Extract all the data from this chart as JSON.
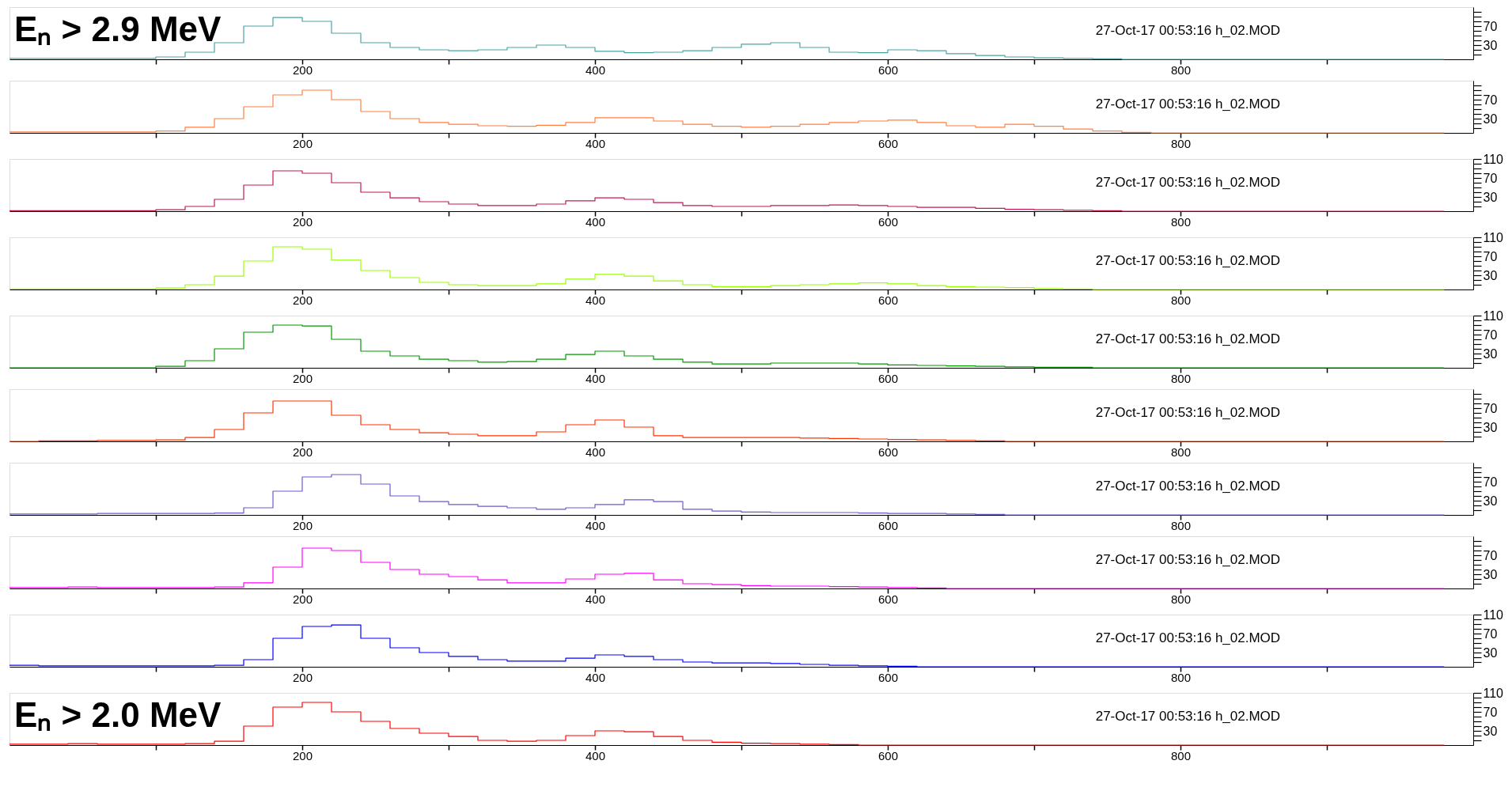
{
  "chart_data": [
    {
      "type": "step",
      "title": "Eₙ > 2.9 MeV",
      "annotations": [
        "27-Oct-17 00:53:16  h_02.MOD"
      ],
      "color": "#4aa3a3",
      "xlim": [
        0,
        1000
      ],
      "ylim": [
        0,
        110
      ],
      "xticks": [
        {
          "value": 100,
          "label": null
        },
        200,
        {
          "value": 300,
          "label": null
        },
        400,
        {
          "value": 500,
          "label": null
        },
        600,
        {
          "value": 700,
          "label": null
        },
        800,
        {
          "value": 900,
          "label": null
        }
      ],
      "yticks": [
        {
          "value": 10,
          "label": null
        },
        {
          "value": 20,
          "label": null
        },
        30,
        {
          "value": 40,
          "label": null
        },
        {
          "value": 50,
          "label": null
        },
        {
          "value": 60,
          "label": null
        },
        70,
        {
          "value": 80,
          "label": null
        },
        {
          "value": 90,
          "label": null
        },
        {
          "value": 100,
          "label": null
        }
      ],
      "x": [
        0,
        20,
        40,
        60,
        80,
        100,
        120,
        140,
        160,
        180,
        200,
        220,
        240,
        260,
        280,
        300,
        320,
        340,
        360,
        380,
        400,
        420,
        440,
        460,
        480,
        500,
        520,
        540,
        560,
        580,
        600,
        620,
        640,
        660,
        680,
        700,
        720,
        740,
        760,
        780,
        800,
        820,
        840,
        860,
        880,
        900,
        920,
        940,
        960,
        980
      ],
      "values": [
        2,
        2,
        2,
        2,
        2,
        5,
        15,
        35,
        70,
        88,
        80,
        55,
        35,
        25,
        20,
        18,
        20,
        25,
        30,
        25,
        17,
        14,
        15,
        18,
        25,
        32,
        35,
        25,
        15,
        14,
        20,
        18,
        12,
        8,
        5,
        3,
        2,
        1,
        0,
        0,
        0,
        0,
        0,
        0,
        0,
        0,
        0,
        0,
        0,
        0
      ]
    },
    {
      "type": "step",
      "annotations": [
        "27-Oct-17 00:53:16  h_02.MOD"
      ],
      "color": "#ff7f3f",
      "xlim": [
        0,
        1000
      ],
      "ylim": [
        0,
        110
      ],
      "xticks": [
        {
          "value": 100,
          "label": null
        },
        200,
        {
          "value": 300,
          "label": null
        },
        400,
        {
          "value": 500,
          "label": null
        },
        600,
        {
          "value": 700,
          "label": null
        },
        800,
        {
          "value": 900,
          "label": null
        }
      ],
      "yticks": [
        {
          "value": 10,
          "label": null
        },
        {
          "value": 20,
          "label": null
        },
        30,
        {
          "value": 40,
          "label": null
        },
        {
          "value": 50,
          "label": null
        },
        {
          "value": 60,
          "label": null
        },
        70,
        {
          "value": 80,
          "label": null
        },
        {
          "value": 90,
          "label": null
        },
        {
          "value": 100,
          "label": null
        }
      ],
      "x": [
        0,
        20,
        40,
        60,
        80,
        100,
        120,
        140,
        160,
        180,
        200,
        220,
        240,
        260,
        280,
        300,
        320,
        340,
        360,
        380,
        400,
        420,
        440,
        460,
        480,
        500,
        520,
        540,
        560,
        580,
        600,
        620,
        640,
        660,
        680,
        700,
        720,
        740,
        760,
        780,
        800,
        820,
        840,
        860,
        880,
        900,
        920,
        940,
        960,
        980
      ],
      "values": [
        2,
        2,
        2,
        2,
        2,
        4,
        12,
        30,
        55,
        80,
        90,
        70,
        45,
        30,
        22,
        18,
        15,
        14,
        16,
        22,
        32,
        32,
        25,
        18,
        14,
        12,
        14,
        18,
        22,
        25,
        27,
        22,
        15,
        12,
        18,
        14,
        8,
        4,
        1,
        0,
        0,
        0,
        0,
        0,
        0,
        0,
        0,
        0,
        0,
        0
      ]
    },
    {
      "type": "step",
      "annotations": [
        "27-Oct-17 00:53:16  h_02.MOD"
      ],
      "color": "#c0185a",
      "xlim": [
        0,
        1000
      ],
      "ylim": [
        0,
        110
      ],
      "xticks": [
        {
          "value": 100,
          "label": null
        },
        200,
        {
          "value": 300,
          "label": null
        },
        400,
        {
          "value": 500,
          "label": null
        },
        600,
        {
          "value": 700,
          "label": null
        },
        800,
        {
          "value": 900,
          "label": null
        }
      ],
      "yticks": [
        {
          "value": 10,
          "label": null
        },
        {
          "value": 20,
          "label": null
        },
        30,
        {
          "value": 40,
          "label": null
        },
        {
          "value": 50,
          "label": null
        },
        {
          "value": 60,
          "label": null
        },
        70,
        {
          "value": 80,
          "label": null
        },
        {
          "value": 90,
          "label": null
        },
        {
          "value": 100,
          "label": null
        },
        110
      ],
      "x": [
        0,
        20,
        40,
        60,
        80,
        100,
        120,
        140,
        160,
        180,
        200,
        220,
        240,
        260,
        280,
        300,
        320,
        340,
        360,
        380,
        400,
        420,
        440,
        460,
        480,
        500,
        520,
        540,
        560,
        580,
        600,
        620,
        640,
        660,
        680,
        700,
        720,
        740,
        760,
        780,
        800,
        820,
        840,
        860,
        880,
        900,
        920,
        940,
        960,
        980
      ],
      "values": [
        1,
        1,
        1,
        1,
        1,
        3,
        10,
        25,
        55,
        85,
        80,
        60,
        40,
        28,
        20,
        15,
        12,
        12,
        15,
        22,
        28,
        25,
        18,
        12,
        10,
        10,
        12,
        12,
        13,
        12,
        10,
        8,
        8,
        6,
        4,
        3,
        2,
        1,
        0,
        0,
        0,
        0,
        0,
        0,
        0,
        0,
        0,
        0,
        0,
        0
      ]
    },
    {
      "type": "step",
      "annotations": [
        "27-Oct-17 00:53:16  h_02.MOD"
      ],
      "color": "#99ff00",
      "xlim": [
        0,
        1000
      ],
      "ylim": [
        0,
        110
      ],
      "xticks": [
        {
          "value": 100,
          "label": null
        },
        200,
        {
          "value": 300,
          "label": null
        },
        400,
        {
          "value": 500,
          "label": null
        },
        600,
        {
          "value": 700,
          "label": null
        },
        800,
        {
          "value": 900,
          "label": null
        }
      ],
      "yticks": [
        {
          "value": 10,
          "label": null
        },
        {
          "value": 20,
          "label": null
        },
        30,
        {
          "value": 40,
          "label": null
        },
        {
          "value": 50,
          "label": null
        },
        {
          "value": 60,
          "label": null
        },
        70,
        {
          "value": 80,
          "label": null
        },
        {
          "value": 90,
          "label": null
        },
        {
          "value": 100,
          "label": null
        },
        110
      ],
      "x": [
        0,
        20,
        40,
        60,
        80,
        100,
        120,
        140,
        160,
        180,
        200,
        220,
        240,
        260,
        280,
        300,
        320,
        340,
        360,
        380,
        400,
        420,
        440,
        460,
        480,
        500,
        520,
        540,
        560,
        580,
        600,
        620,
        640,
        660,
        680,
        700,
        720,
        740,
        760,
        780,
        800,
        820,
        840,
        860,
        880,
        900,
        920,
        940,
        960,
        980
      ],
      "values": [
        1,
        1,
        1,
        1,
        1,
        3,
        10,
        28,
        60,
        90,
        85,
        62,
        40,
        25,
        15,
        10,
        8,
        8,
        12,
        22,
        32,
        28,
        18,
        10,
        6,
        6,
        8,
        10,
        12,
        14,
        12,
        8,
        6,
        5,
        4,
        2,
        1,
        0,
        0,
        0,
        0,
        0,
        0,
        0,
        0,
        0,
        0,
        0,
        0,
        0
      ]
    },
    {
      "type": "step",
      "annotations": [
        "27-Oct-17 00:53:16  h_02.MOD"
      ],
      "color": "#009900",
      "xlim": [
        0,
        1000
      ],
      "ylim": [
        0,
        110
      ],
      "xticks": [
        {
          "value": 100,
          "label": null
        },
        200,
        {
          "value": 300,
          "label": null
        },
        400,
        {
          "value": 500,
          "label": null
        },
        600,
        {
          "value": 700,
          "label": null
        },
        800,
        {
          "value": 900,
          "label": null
        }
      ],
      "yticks": [
        {
          "value": 10,
          "label": null
        },
        {
          "value": 20,
          "label": null
        },
        30,
        {
          "value": 40,
          "label": null
        },
        {
          "value": 50,
          "label": null
        },
        {
          "value": 60,
          "label": null
        },
        70,
        {
          "value": 80,
          "label": null
        },
        {
          "value": 90,
          "label": null
        },
        {
          "value": 100,
          "label": null
        },
        110
      ],
      "x": [
        0,
        20,
        40,
        60,
        80,
        100,
        120,
        140,
        160,
        180,
        200,
        220,
        240,
        260,
        280,
        300,
        320,
        340,
        360,
        380,
        400,
        420,
        440,
        460,
        480,
        500,
        520,
        540,
        560,
        580,
        600,
        620,
        640,
        660,
        680,
        700,
        720,
        740,
        760,
        780,
        800,
        820,
        840,
        860,
        880,
        900,
        920,
        940,
        960,
        980
      ],
      "values": [
        0,
        0,
        0,
        0,
        0,
        3,
        15,
        40,
        75,
        90,
        88,
        60,
        35,
        25,
        18,
        15,
        12,
        13,
        18,
        28,
        35,
        25,
        18,
        12,
        8,
        8,
        10,
        10,
        10,
        8,
        6,
        5,
        4,
        3,
        2,
        1,
        1,
        0,
        0,
        0,
        0,
        0,
        0,
        0,
        0,
        0,
        0,
        0,
        0,
        0
      ]
    },
    {
      "type": "step",
      "annotations": [
        "27-Oct-17 00:53:16  h_02.MOD"
      ],
      "color": "#ff3300",
      "xlim": [
        0,
        1000
      ],
      "ylim": [
        0,
        110
      ],
      "xticks": [
        {
          "value": 100,
          "label": null
        },
        200,
        {
          "value": 300,
          "label": null
        },
        400,
        {
          "value": 500,
          "label": null
        },
        600,
        {
          "value": 700,
          "label": null
        },
        800,
        {
          "value": 900,
          "label": null
        }
      ],
      "yticks": [
        {
          "value": 10,
          "label": null
        },
        {
          "value": 20,
          "label": null
        },
        30,
        {
          "value": 40,
          "label": null
        },
        {
          "value": 50,
          "label": null
        },
        {
          "value": 60,
          "label": null
        },
        70,
        {
          "value": 80,
          "label": null
        },
        {
          "value": 90,
          "label": null
        },
        {
          "value": 100,
          "label": null
        }
      ],
      "x": [
        0,
        20,
        40,
        60,
        80,
        100,
        120,
        140,
        160,
        180,
        200,
        220,
        240,
        260,
        280,
        300,
        320,
        340,
        360,
        380,
        400,
        420,
        440,
        460,
        480,
        500,
        520,
        540,
        560,
        580,
        600,
        620,
        640,
        660,
        680,
        700,
        720,
        740,
        760,
        780,
        800,
        820,
        840,
        860,
        880,
        900,
        920,
        940,
        960,
        980
      ],
      "values": [
        0,
        1,
        1,
        2,
        2,
        3,
        8,
        25,
        60,
        85,
        85,
        55,
        35,
        25,
        18,
        15,
        12,
        12,
        20,
        35,
        45,
        30,
        12,
        8,
        8,
        8,
        8,
        7,
        6,
        5,
        4,
        3,
        2,
        1,
        0,
        0,
        0,
        0,
        0,
        0,
        0,
        0,
        0,
        0,
        0,
        0,
        0,
        0,
        0,
        0
      ]
    },
    {
      "type": "step",
      "annotations": [
        "27-Oct-17 00:53:16  h_02.MOD"
      ],
      "color": "#6a5acd",
      "xlim": [
        0,
        1000
      ],
      "ylim": [
        0,
        110
      ],
      "xticks": [
        {
          "value": 100,
          "label": null
        },
        200,
        {
          "value": 300,
          "label": null
        },
        400,
        {
          "value": 500,
          "label": null
        },
        600,
        {
          "value": 700,
          "label": null
        },
        800,
        {
          "value": 900,
          "label": null
        }
      ],
      "yticks": [
        {
          "value": 10,
          "label": null
        },
        {
          "value": 20,
          "label": null
        },
        30,
        {
          "value": 40,
          "label": null
        },
        {
          "value": 50,
          "label": null
        },
        {
          "value": 60,
          "label": null
        },
        70,
        {
          "value": 80,
          "label": null
        },
        {
          "value": 90,
          "label": null
        },
        {
          "value": 100,
          "label": null
        }
      ],
      "x": [
        0,
        20,
        40,
        60,
        80,
        100,
        120,
        140,
        160,
        180,
        200,
        220,
        240,
        260,
        280,
        300,
        320,
        340,
        360,
        380,
        400,
        420,
        440,
        460,
        480,
        500,
        520,
        540,
        560,
        580,
        600,
        620,
        640,
        660,
        680,
        700,
        720,
        740,
        760,
        780,
        800,
        820,
        840,
        860,
        880,
        900,
        920,
        940,
        960,
        980
      ],
      "values": [
        2,
        2,
        2,
        3,
        3,
        3,
        3,
        4,
        15,
        50,
        80,
        85,
        65,
        40,
        28,
        22,
        18,
        15,
        12,
        15,
        22,
        32,
        28,
        12,
        8,
        6,
        5,
        5,
        5,
        4,
        3,
        3,
        2,
        1,
        0,
        0,
        0,
        0,
        0,
        0,
        0,
        0,
        0,
        0,
        0,
        0,
        0,
        0,
        0,
        0
      ]
    },
    {
      "type": "step",
      "annotations": [
        "27-Oct-17 00:53:16  h_02.MOD"
      ],
      "color": "#ff00ff",
      "xlim": [
        0,
        1000
      ],
      "ylim": [
        0,
        110
      ],
      "xticks": [
        {
          "value": 100,
          "label": null
        },
        200,
        {
          "value": 300,
          "label": null
        },
        400,
        {
          "value": 500,
          "label": null
        },
        600,
        {
          "value": 700,
          "label": null
        },
        800,
        {
          "value": 900,
          "label": null
        }
      ],
      "yticks": [
        {
          "value": 10,
          "label": null
        },
        {
          "value": 20,
          "label": null
        },
        30,
        {
          "value": 40,
          "label": null
        },
        {
          "value": 50,
          "label": null
        },
        {
          "value": 60,
          "label": null
        },
        70,
        {
          "value": 80,
          "label": null
        },
        {
          "value": 90,
          "label": null
        },
        {
          "value": 100,
          "label": null
        }
      ],
      "x": [
        0,
        20,
        40,
        60,
        80,
        100,
        120,
        140,
        160,
        180,
        200,
        220,
        240,
        260,
        280,
        300,
        320,
        340,
        360,
        380,
        400,
        420,
        440,
        460,
        480,
        500,
        520,
        540,
        560,
        580,
        600,
        620,
        640,
        660,
        680,
        700,
        720,
        740,
        760,
        780,
        800,
        820,
        840,
        860,
        880,
        900,
        920,
        940,
        960,
        980
      ],
      "values": [
        2,
        2,
        3,
        2,
        2,
        2,
        2,
        3,
        12,
        45,
        85,
        80,
        55,
        40,
        30,
        25,
        18,
        12,
        12,
        20,
        30,
        32,
        18,
        10,
        8,
        6,
        5,
        5,
        4,
        3,
        2,
        1,
        0,
        0,
        0,
        0,
        0,
        0,
        0,
        0,
        0,
        0,
        0,
        0,
        0,
        0,
        0,
        0,
        0,
        0
      ]
    },
    {
      "type": "step",
      "annotations": [
        "27-Oct-17 00:53:16  h_02.MOD"
      ],
      "color": "#0000ff",
      "xlim": [
        0,
        1000
      ],
      "ylim": [
        0,
        110
      ],
      "xticks": [
        {
          "value": 100,
          "label": null
        },
        200,
        {
          "value": 300,
          "label": null
        },
        400,
        {
          "value": 500,
          "label": null
        },
        600,
        {
          "value": 700,
          "label": null
        },
        800,
        {
          "value": 900,
          "label": null
        }
      ],
      "yticks": [
        {
          "value": 10,
          "label": null
        },
        {
          "value": 20,
          "label": null
        },
        30,
        {
          "value": 40,
          "label": null
        },
        {
          "value": 50,
          "label": null
        },
        {
          "value": 60,
          "label": null
        },
        70,
        {
          "value": 80,
          "label": null
        },
        {
          "value": 90,
          "label": null
        },
        {
          "value": 100,
          "label": null
        },
        110
      ],
      "x": [
        0,
        20,
        40,
        60,
        80,
        100,
        120,
        140,
        160,
        180,
        200,
        220,
        240,
        260,
        280,
        300,
        320,
        340,
        360,
        380,
        400,
        420,
        440,
        460,
        480,
        500,
        520,
        540,
        560,
        580,
        600,
        620,
        640,
        660,
        680,
        700,
        720,
        740,
        760,
        780,
        800,
        820,
        840,
        860,
        880,
        900,
        920,
        940,
        960,
        980
      ],
      "values": [
        3,
        2,
        2,
        2,
        2,
        2,
        2,
        3,
        15,
        60,
        85,
        88,
        60,
        40,
        30,
        22,
        15,
        12,
        12,
        18,
        25,
        22,
        15,
        10,
        8,
        8,
        7,
        5,
        3,
        2,
        1,
        0,
        0,
        0,
        0,
        0,
        0,
        0,
        0,
        0,
        0,
        0,
        0,
        0,
        0,
        0,
        0,
        0,
        0,
        0
      ]
    },
    {
      "type": "step",
      "title": "Eₙ > 2.0 MeV",
      "annotations": [
        "27-Oct-17 00:53:16  h_02.MOD"
      ],
      "color": "#ff0000",
      "xlim": [
        0,
        1000
      ],
      "ylim": [
        0,
        110
      ],
      "xticks": [
        {
          "value": 100,
          "label": null
        },
        200,
        {
          "value": 300,
          "label": null
        },
        400,
        {
          "value": 500,
          "label": null
        },
        600,
        {
          "value": 700,
          "label": null
        },
        800,
        {
          "value": 900,
          "label": null
        }
      ],
      "yticks": [
        {
          "value": 10,
          "label": null
        },
        {
          "value": 20,
          "label": null
        },
        30,
        {
          "value": 40,
          "label": null
        },
        {
          "value": 50,
          "label": null
        },
        {
          "value": 60,
          "label": null
        },
        70,
        {
          "value": 80,
          "label": null
        },
        {
          "value": 90,
          "label": null
        },
        {
          "value": 100,
          "label": null
        },
        110
      ],
      "x": [
        0,
        20,
        40,
        60,
        80,
        100,
        120,
        140,
        160,
        180,
        200,
        220,
        240,
        260,
        280,
        300,
        320,
        340,
        360,
        380,
        400,
        420,
        440,
        460,
        480,
        500,
        520,
        540,
        560,
        580,
        600,
        620,
        640,
        660,
        680,
        700,
        720,
        740,
        760,
        780,
        800,
        820,
        840,
        860,
        880,
        900,
        920,
        940,
        960,
        980
      ],
      "values": [
        2,
        2,
        3,
        2,
        2,
        2,
        3,
        8,
        40,
        80,
        90,
        70,
        50,
        35,
        25,
        18,
        10,
        8,
        10,
        20,
        30,
        28,
        18,
        10,
        6,
        4,
        3,
        2,
        1,
        0,
        0,
        0,
        0,
        0,
        0,
        0,
        0,
        0,
        0,
        0,
        0,
        0,
        0,
        0,
        0,
        0,
        0,
        0,
        0,
        0
      ]
    }
  ]
}
